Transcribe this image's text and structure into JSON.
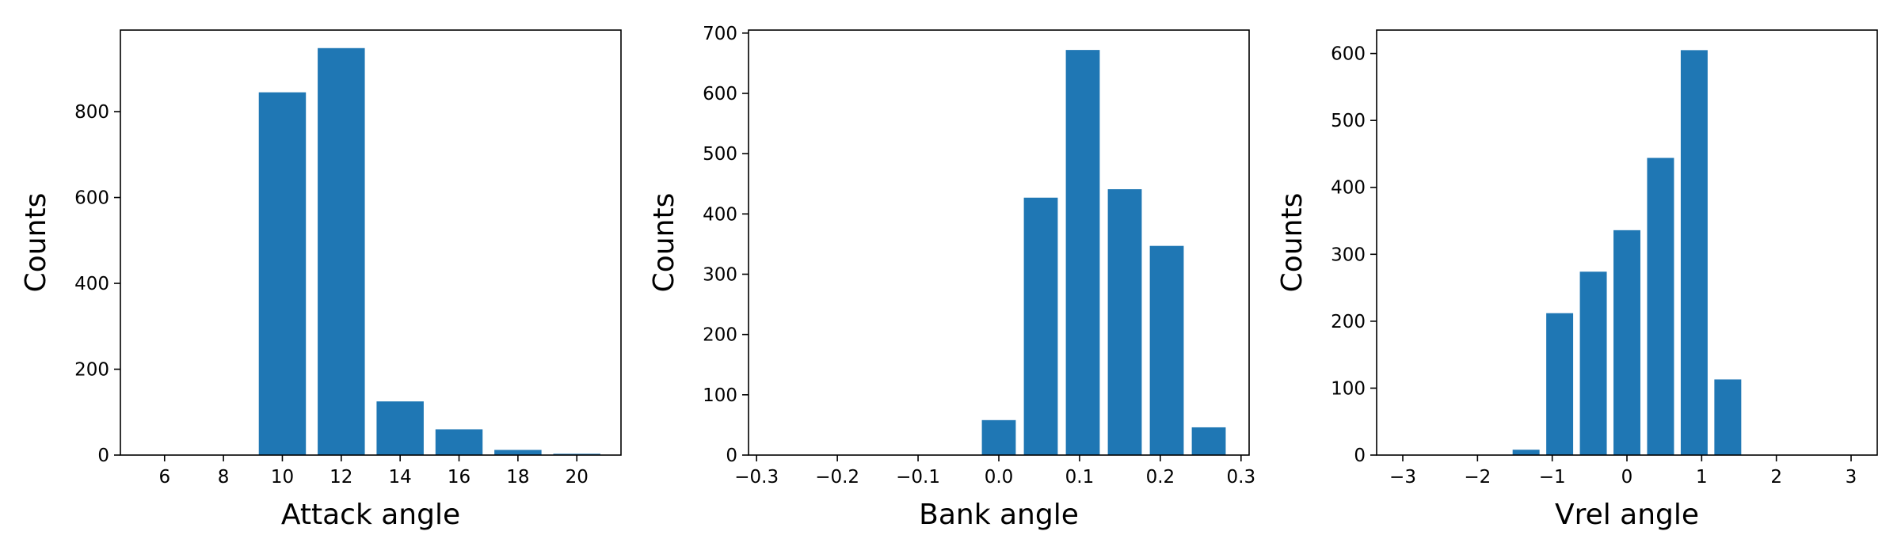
{
  "chart_data": [
    {
      "type": "bar",
      "xlabel": "Attack angle",
      "ylabel": "Counts",
      "xlim": [
        4.5,
        21.5
      ],
      "ylim": [
        0,
        990
      ],
      "xticks": [
        6,
        8,
        10,
        12,
        14,
        16,
        18,
        20
      ],
      "yticks": [
        0,
        200,
        400,
        600,
        800
      ],
      "xtick_labels": [
        "6",
        "8",
        "10",
        "12",
        "14",
        "16",
        "18",
        "20"
      ],
      "ytick_labels": [
        "0",
        "200",
        "400",
        "600",
        "800"
      ],
      "bar_width": 1.6,
      "x": [
        6,
        8,
        10,
        12,
        14,
        16,
        18,
        20
      ],
      "values": [
        0,
        0,
        845,
        948,
        125,
        60,
        12,
        3
      ],
      "color": "#1f77b4",
      "grid": false,
      "legend": false
    },
    {
      "type": "bar",
      "xlabel": "Bank angle",
      "ylabel": "Counts",
      "xlim": [
        -0.31,
        0.31
      ],
      "ylim": [
        0,
        705
      ],
      "xticks": [
        -0.3,
        -0.2,
        -0.1,
        0.0,
        0.1,
        0.2,
        0.3
      ],
      "yticks": [
        0,
        100,
        200,
        300,
        400,
        500,
        600,
        700
      ],
      "xtick_labels": [
        "−0.3",
        "−0.2",
        "−0.1",
        "0.0",
        "0.1",
        "0.2",
        "0.3"
      ],
      "ytick_labels": [
        "0",
        "100",
        "200",
        "300",
        "400",
        "500",
        "600",
        "700"
      ],
      "bar_width": 0.042,
      "x": [
        0.0,
        0.052,
        0.104,
        0.156,
        0.208,
        0.26
      ],
      "values": [
        58,
        427,
        672,
        441,
        347,
        46
      ],
      "color": "#1f77b4",
      "grid": false,
      "legend": false
    },
    {
      "type": "bar",
      "xlabel": "Vrel angle",
      "ylabel": "Counts",
      "xlim": [
        -3.35,
        3.35
      ],
      "ylim": [
        0,
        635
      ],
      "xticks": [
        -3,
        -2,
        -1,
        0,
        1,
        2,
        3
      ],
      "yticks": [
        0,
        100,
        200,
        300,
        400,
        500,
        600
      ],
      "xtick_labels": [
        "−3",
        "−2",
        "−1",
        "0",
        "1",
        "2",
        "3"
      ],
      "ytick_labels": [
        "0",
        "100",
        "200",
        "300",
        "400",
        "500",
        "600"
      ],
      "bar_width": 0.36,
      "x": [
        -1.35,
        -0.9,
        -0.45,
        0.0,
        0.45,
        0.9,
        1.35
      ],
      "values": [
        8,
        212,
        274,
        336,
        444,
        605,
        113
      ],
      "color": "#1f77b4",
      "grid": false,
      "legend": false
    }
  ]
}
